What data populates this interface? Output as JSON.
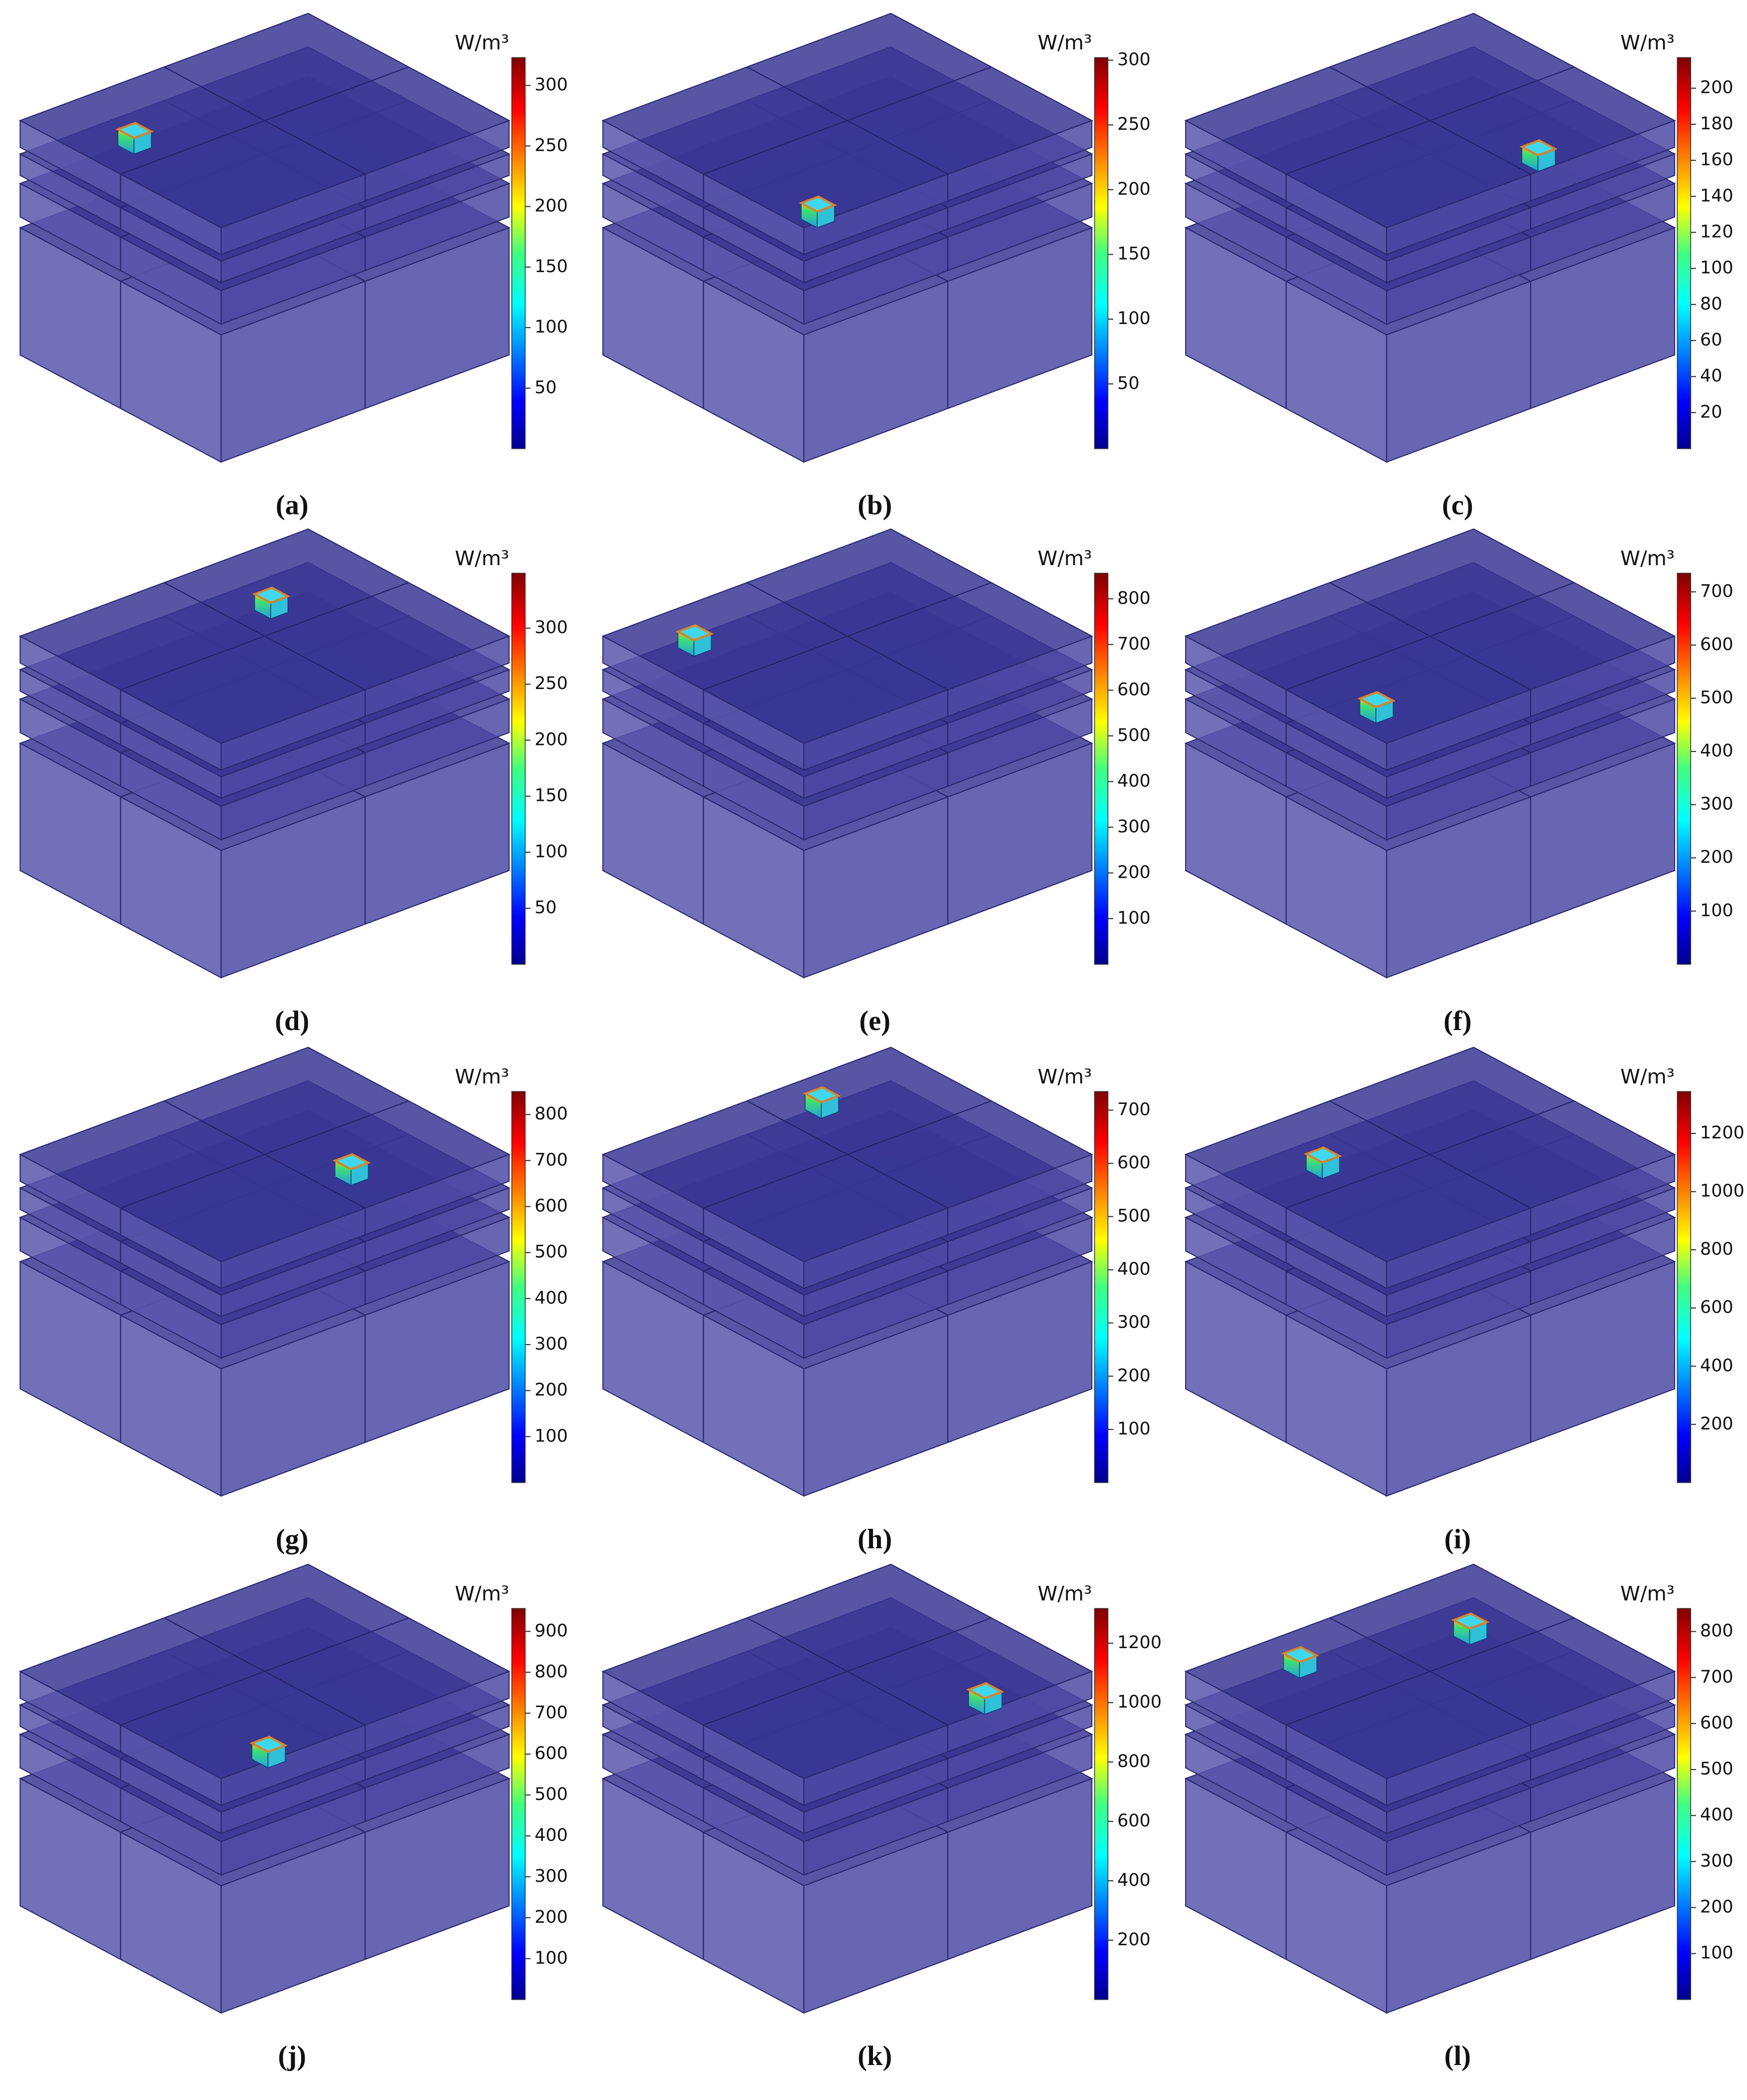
{
  "chart_data": [
    {
      "type": "colorbar-3d",
      "label": "(a)",
      "unit": "W/m³",
      "clim": [
        0,
        323
      ],
      "cticks": [
        50,
        100,
        150,
        200,
        250,
        300
      ]
    },
    {
      "type": "colorbar-3d",
      "label": "(b)",
      "unit": "W/m³",
      "clim": [
        0,
        302
      ],
      "cticks": [
        50,
        100,
        150,
        200,
        250,
        300
      ]
    },
    {
      "type": "colorbar-3d",
      "label": "(c)",
      "unit": "W/m³",
      "clim": [
        0,
        217
      ],
      "cticks": [
        20,
        40,
        60,
        80,
        100,
        120,
        140,
        160,
        180,
        200
      ]
    },
    {
      "type": "colorbar-3d",
      "label": "(d)",
      "unit": "W/m³",
      "clim": [
        0,
        349
      ],
      "cticks": [
        50,
        100,
        150,
        200,
        250,
        300
      ]
    },
    {
      "type": "colorbar-3d",
      "label": "(e)",
      "unit": "W/m³",
      "clim": [
        0,
        856
      ],
      "cticks": [
        100,
        200,
        300,
        400,
        500,
        600,
        700,
        800
      ]
    },
    {
      "type": "colorbar-3d",
      "label": "(f)",
      "unit": "W/m³",
      "clim": [
        0,
        735
      ],
      "cticks": [
        100,
        200,
        300,
        400,
        500,
        600,
        700
      ]
    },
    {
      "type": "colorbar-3d",
      "label": "(g)",
      "unit": "W/m³",
      "clim": [
        0,
        850
      ],
      "cticks": [
        100,
        200,
        300,
        400,
        500,
        600,
        700,
        800
      ]
    },
    {
      "type": "colorbar-3d",
      "label": "(h)",
      "unit": "W/m³",
      "clim": [
        0,
        735
      ],
      "cticks": [
        100,
        200,
        300,
        400,
        500,
        600,
        700
      ]
    },
    {
      "type": "colorbar-3d",
      "label": "(i)",
      "unit": "W/m³",
      "clim": [
        0,
        1344
      ],
      "cticks": [
        200,
        400,
        600,
        800,
        1000,
        1200
      ]
    },
    {
      "type": "colorbar-3d",
      "label": "(j)",
      "unit": "W/m³",
      "clim": [
        0,
        956
      ],
      "cticks": [
        100,
        200,
        300,
        400,
        500,
        600,
        700,
        800,
        900
      ]
    },
    {
      "type": "colorbar-3d",
      "label": "(k)",
      "unit": "W/m³",
      "clim": [
        0,
        1317
      ],
      "cticks": [
        200,
        400,
        600,
        800,
        1000,
        1200
      ]
    },
    {
      "type": "colorbar-3d",
      "label": "(l)",
      "unit": "W/m³",
      "clim": [
        0,
        850
      ],
      "cticks": [
        100,
        200,
        300,
        400,
        500,
        600,
        700,
        800
      ]
    }
  ]
}
